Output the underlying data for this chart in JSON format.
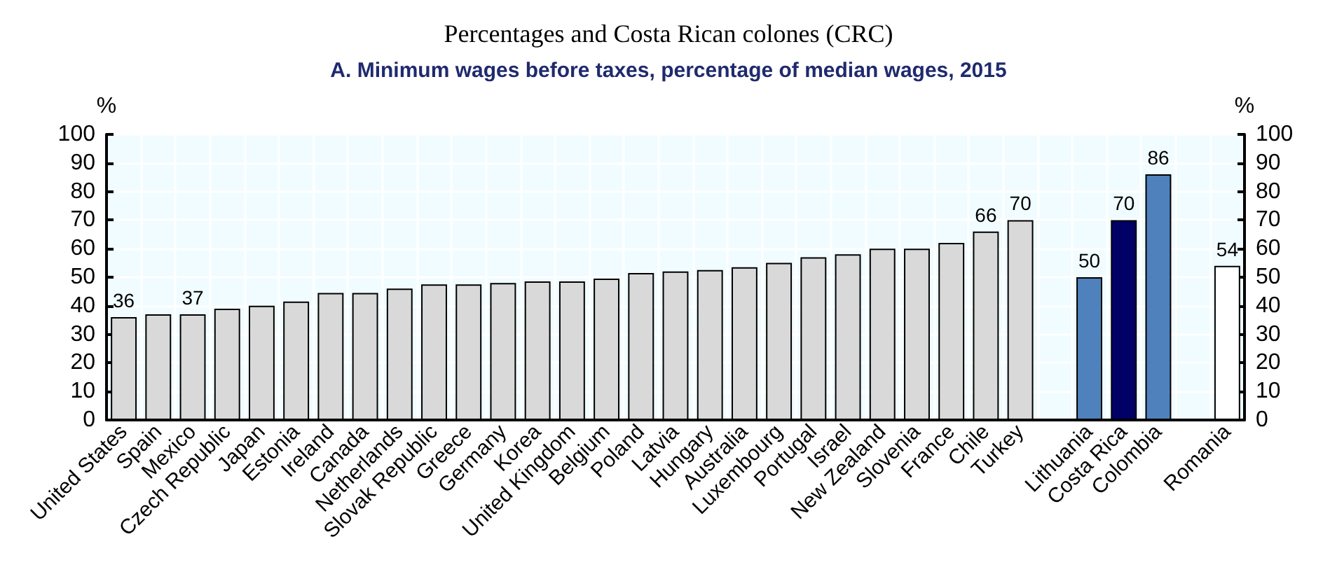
{
  "chart_data": {
    "type": "bar",
    "title": "Percentages and Costa Rican colones (CRC)",
    "subtitle": "A. Minimum wages before taxes, percentage of median wages, 2015",
    "ylabel": "%",
    "y2label": "%",
    "categories": [
      "United States",
      "Spain",
      "Mexico",
      "Czech Republic",
      "Japan",
      "Estonia",
      "Ireland",
      "Canada",
      "Netherlands",
      "Slovak Republic",
      "Greece",
      "Germany",
      "Korea",
      "United Kingdom",
      "Belgium",
      "Poland",
      "Latvia",
      "Hungary",
      "Australia",
      "Luxembourg",
      "Portugal",
      "Israel",
      "New Zealand",
      "Slovenia",
      "France",
      "Chile",
      "Turkey",
      null,
      "Lithuania",
      "Costa Rica",
      "Colombia",
      null,
      "Romania"
    ],
    "values": [
      36,
      37,
      37,
      39,
      40,
      41.5,
      44.5,
      44.5,
      46,
      47.5,
      47.5,
      48,
      48.5,
      48.5,
      49.5,
      51.5,
      52,
      52.5,
      53.5,
      55,
      57,
      58,
      60,
      60,
      62,
      66,
      70,
      null,
      50,
      70,
      86,
      null,
      54
    ],
    "value_labels": [
      "36",
      null,
      "37",
      null,
      null,
      null,
      null,
      null,
      null,
      null,
      null,
      null,
      null,
      null,
      null,
      null,
      null,
      null,
      null,
      null,
      null,
      null,
      null,
      null,
      null,
      "66",
      "70",
      null,
      "50",
      "70",
      "86",
      null,
      "54"
    ],
    "colors": [
      "#d9d9d9",
      "#d9d9d9",
      "#d9d9d9",
      "#d9d9d9",
      "#d9d9d9",
      "#d9d9d9",
      "#d9d9d9",
      "#d9d9d9",
      "#d9d9d9",
      "#d9d9d9",
      "#d9d9d9",
      "#d9d9d9",
      "#d9d9d9",
      "#d9d9d9",
      "#d9d9d9",
      "#d9d9d9",
      "#d9d9d9",
      "#d9d9d9",
      "#d9d9d9",
      "#d9d9d9",
      "#d9d9d9",
      "#d9d9d9",
      "#d9d9d9",
      "#d9d9d9",
      "#d9d9d9",
      "#d9d9d9",
      "#d9d9d9",
      "#d9d9d9",
      "#4f81bd",
      "#000066",
      "#4f81bd",
      "#d9d9d9",
      "#ffffff"
    ],
    "ylim": [
      0,
      100
    ],
    "yticks": [
      0,
      10,
      20,
      30,
      40,
      50,
      60,
      70,
      80,
      90,
      100
    ],
    "y2lim": [
      0,
      100
    ],
    "y2ticks": [
      0,
      10,
      20,
      30,
      40,
      50,
      60,
      70,
      80,
      90,
      100
    ],
    "grid": true
  }
}
